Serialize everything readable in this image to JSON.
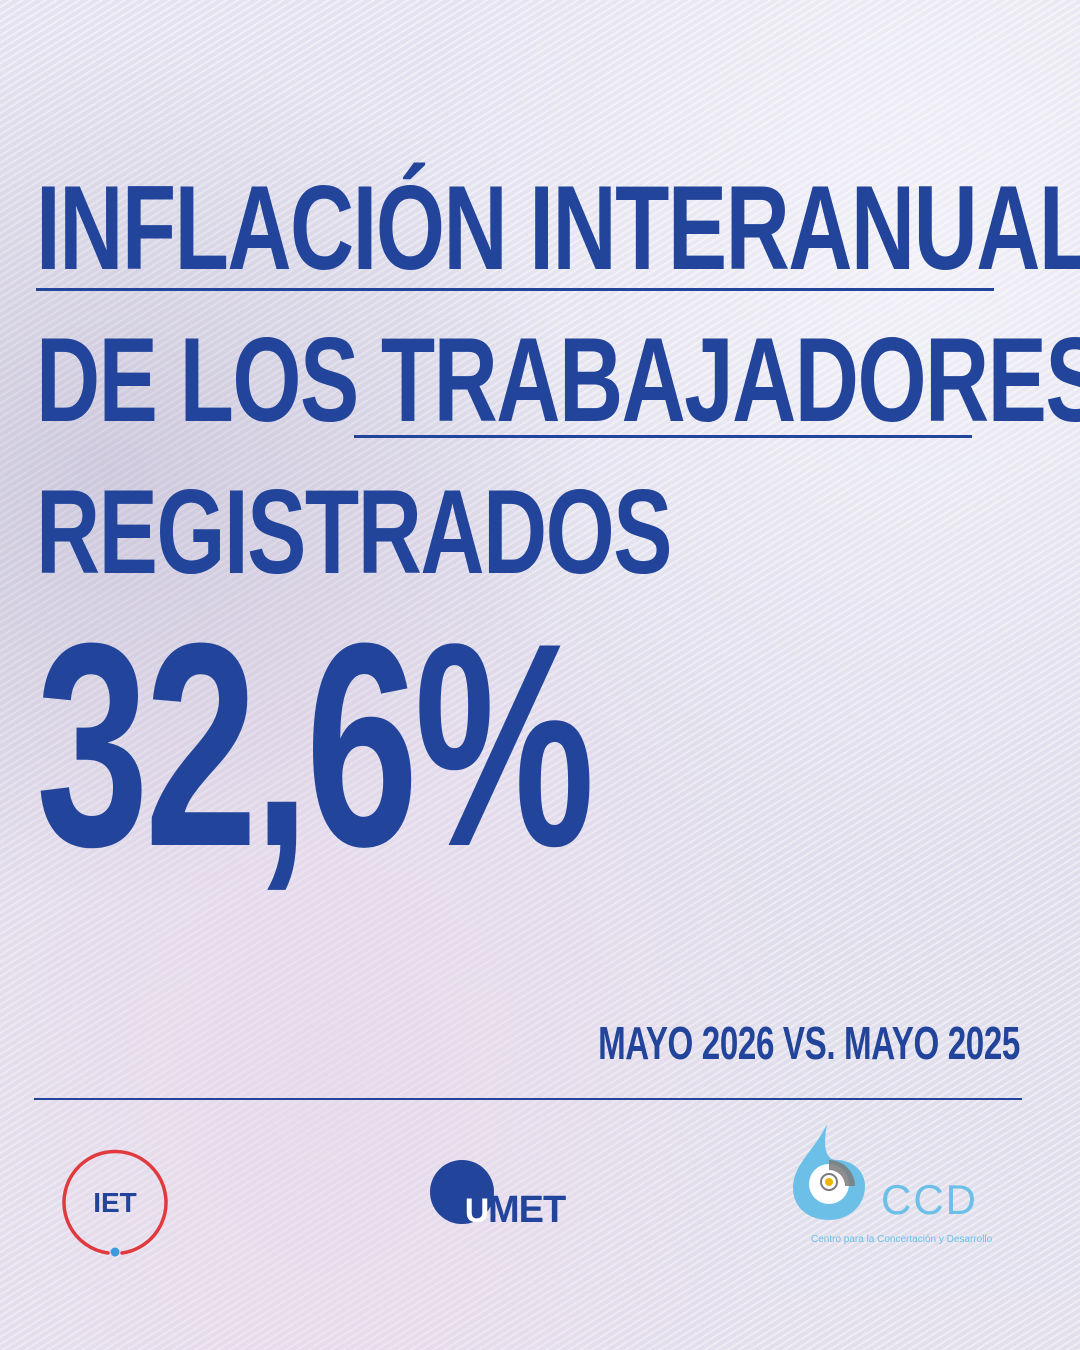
{
  "headline": {
    "line1": "INFLACIÓN INTERANUAL",
    "line2": "DE LOS TRABAJADORES",
    "line3": "REGISTRADOS"
  },
  "value": "32,6%",
  "period": "MAYO 2026 VS. MAYO 2025",
  "logos": {
    "iet": "IET",
    "umet": "MET",
    "umet_letter": "U",
    "ccd": "CCD",
    "ccd_tagline": "Centro para la Concertación y Desarrollo"
  },
  "colors": {
    "primary": "#22449a",
    "iet_ring": "#e03a3e",
    "iet_dot": "#3b9be0",
    "ccd_blue": "#6cc0e8",
    "ccd_gray": "#7a7a7a",
    "ccd_dot": "#f0b500"
  }
}
